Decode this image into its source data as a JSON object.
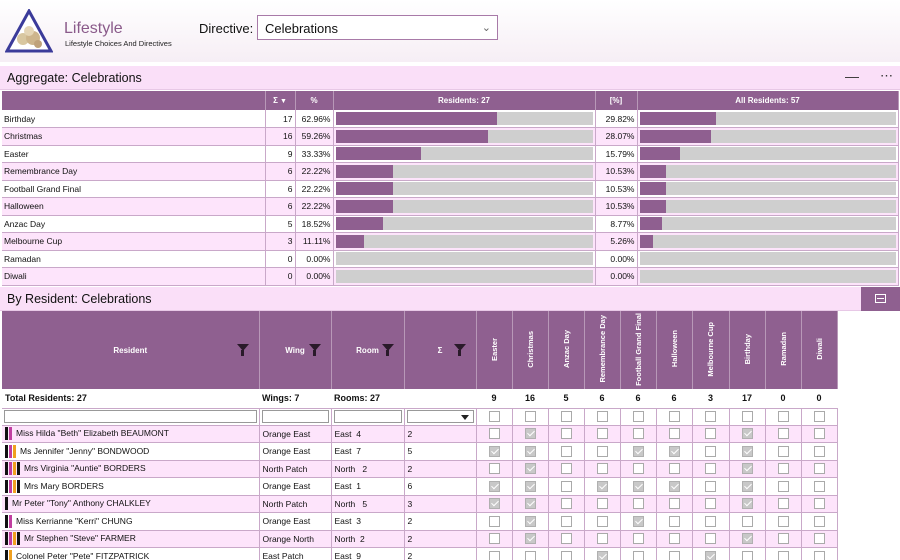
{
  "header": {
    "app_title": "Lifestyle",
    "app_subtitle": "Lifestyle Choices And Directives",
    "directive_label": "Directive:",
    "directive_value": "Celebrations"
  },
  "aggregate": {
    "title": "Aggregate: Celebrations",
    "columns": {
      "sum": "Σ",
      "pct": "%",
      "residents": "Residents: 27",
      "pct2": "[%]",
      "all_residents": "All Residents: 57"
    },
    "rows": [
      {
        "name": "Birthday",
        "count": 17,
        "pct": "62.96%",
        "fraction": 0.6296,
        "all_pct": "29.82%",
        "all_fraction": 0.2982
      },
      {
        "name": "Christmas",
        "count": 16,
        "pct": "59.26%",
        "fraction": 0.5926,
        "all_pct": "28.07%",
        "all_fraction": 0.2807
      },
      {
        "name": "Easter",
        "count": 9,
        "pct": "33.33%",
        "fraction": 0.3333,
        "all_pct": "15.79%",
        "all_fraction": 0.1579
      },
      {
        "name": "Remembrance Day",
        "count": 6,
        "pct": "22.22%",
        "fraction": 0.2222,
        "all_pct": "10.53%",
        "all_fraction": 0.1053
      },
      {
        "name": "Football Grand Final",
        "count": 6,
        "pct": "22.22%",
        "fraction": 0.2222,
        "all_pct": "10.53%",
        "all_fraction": 0.1053
      },
      {
        "name": "Halloween",
        "count": 6,
        "pct": "22.22%",
        "fraction": 0.2222,
        "all_pct": "10.53%",
        "all_fraction": 0.1053
      },
      {
        "name": "Anzac Day",
        "count": 5,
        "pct": "18.52%",
        "fraction": 0.1852,
        "all_pct": "8.77%",
        "all_fraction": 0.0877
      },
      {
        "name": "Melbourne Cup",
        "count": 3,
        "pct": "11.11%",
        "fraction": 0.1111,
        "all_pct": "5.26%",
        "all_fraction": 0.0526
      },
      {
        "name": "Ramadan",
        "count": 0,
        "pct": "0.00%",
        "fraction": 0,
        "all_pct": "0.00%",
        "all_fraction": 0
      },
      {
        "name": "Diwali",
        "count": 0,
        "pct": "0.00%",
        "fraction": 0,
        "all_pct": "0.00%",
        "all_fraction": 0
      }
    ]
  },
  "residents": {
    "title": "By Resident: Celebrations",
    "columns": {
      "resident": "Resident",
      "wing": "Wing",
      "room": "Room",
      "sum": "Σ"
    },
    "celebrations": [
      "Easter",
      "Christmas",
      "Anzac Day",
      "Remembrance Day",
      "Football Grand Final",
      "Halloween",
      "Melbourne Cup",
      "Birthday",
      "Ramadan",
      "Diwali"
    ],
    "totals": {
      "residents": "Total Residents: 27",
      "wings": "Wings: 7",
      "rooms": "Rooms: 27",
      "counts": [
        "9",
        "16",
        "5",
        "6",
        "6",
        "6",
        "3",
        "17",
        "0",
        "0"
      ]
    },
    "rows": [
      {
        "name": "Miss Hilda \"Beth\" Elizabeth BEAUMONT",
        "wing": "Orange East",
        "room": "East  4",
        "sum": "2",
        "tags": [
          "#111111",
          "#c03fa0"
        ],
        "checks": [
          0,
          1,
          0,
          0,
          0,
          0,
          0,
          1,
          0,
          0
        ]
      },
      {
        "name": "Ms Jennifer \"Jenny\" BONDWOOD",
        "wing": "Orange East",
        "room": "East  7",
        "sum": "5",
        "tags": [
          "#111111",
          "#c03fa0",
          "#f0a020"
        ],
        "checks": [
          1,
          1,
          0,
          0,
          1,
          1,
          0,
          1,
          0,
          0
        ]
      },
      {
        "name": "Mrs Virginia \"Auntie\" BORDERS",
        "wing": "North Patch",
        "room": "North   2",
        "sum": "2",
        "tags": [
          "#111111",
          "#c03fa0",
          "#f0a020",
          "#111111"
        ],
        "checks": [
          0,
          1,
          0,
          0,
          0,
          0,
          0,
          1,
          0,
          0
        ]
      },
      {
        "name": "Mrs Mary BORDERS",
        "wing": "Orange East",
        "room": "East  1",
        "sum": "6",
        "tags": [
          "#111111",
          "#c03fa0",
          "#f0a020",
          "#111111"
        ],
        "checks": [
          1,
          1,
          0,
          1,
          1,
          1,
          0,
          1,
          0,
          0
        ]
      },
      {
        "name": "Mr Peter \"Tony\" Anthony CHALKLEY",
        "wing": "North Patch",
        "room": "North   5",
        "sum": "3",
        "tags": [
          "#111111"
        ],
        "checks": [
          1,
          1,
          0,
          0,
          0,
          0,
          0,
          1,
          0,
          0
        ]
      },
      {
        "name": "Miss Kerrianne \"Kerri\" CHUNG",
        "wing": "Orange East",
        "room": "East  3",
        "sum": "2",
        "tags": [
          "#111111",
          "#c03fa0"
        ],
        "checks": [
          0,
          1,
          0,
          0,
          1,
          0,
          0,
          0,
          0,
          0
        ]
      },
      {
        "name": "Mr Stephen \"Steve\" FARMER",
        "wing": "Orange North",
        "room": "North  2",
        "sum": "2",
        "tags": [
          "#111111",
          "#c03fa0",
          "#f0a020",
          "#111111"
        ],
        "checks": [
          0,
          1,
          0,
          0,
          0,
          0,
          0,
          1,
          0,
          0
        ]
      },
      {
        "name": "Colonel Peter \"Pete\" FITZPATRICK",
        "wing": "East Patch",
        "room": "East  9",
        "sum": "2",
        "tags": [
          "#111111",
          "#f0a020"
        ],
        "checks": [
          0,
          0,
          0,
          1,
          0,
          0,
          1,
          0,
          0,
          0
        ]
      }
    ]
  },
  "colors": {
    "accent": "#8f6090",
    "row_alt": "#fde4fb",
    "bar_fill": "#8f5f90",
    "bar_track": "#cfcfcf"
  }
}
